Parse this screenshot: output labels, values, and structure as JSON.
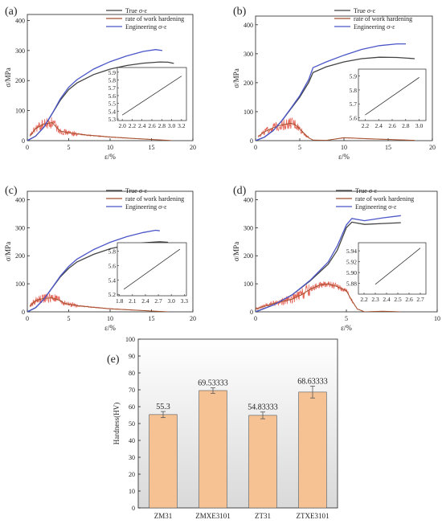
{
  "chart_data": [
    {
      "type": "line",
      "panel_label": "(a)",
      "xlabel": "ε/%",
      "ylabel": "σ/MPa",
      "xlim": [
        0,
        20
      ],
      "ylim": [
        0,
        420
      ],
      "xticks": [
        "0",
        "5",
        "10",
        "15",
        "20"
      ],
      "yticks": [
        "0",
        "100",
        "200",
        "300",
        "400"
      ],
      "legend": "top-right",
      "series": [
        {
          "name": "True σ-ε",
          "color": "#444444",
          "kind": "curve",
          "points": [
            [
              0,
              0
            ],
            [
              1,
              15
            ],
            [
              2,
              45
            ],
            [
              3,
              90
            ],
            [
              4,
              135
            ],
            [
              5,
              170
            ],
            [
              6,
              192
            ],
            [
              8,
              220
            ],
            [
              10,
              238
            ],
            [
              12,
              250
            ],
            [
              14,
              258
            ],
            [
              16,
              262
            ],
            [
              17,
              261
            ],
            [
              17.7,
              257
            ]
          ]
        },
        {
          "name": "rate of work hardening",
          "color": "#a0522d",
          "kind": "hardening",
          "points": [
            [
              0.3,
              15
            ],
            [
              1,
              40
            ],
            [
              2,
              55
            ],
            [
              3,
              60
            ],
            [
              3.5,
              45
            ],
            [
              4,
              32
            ],
            [
              5,
              26
            ],
            [
              7,
              19
            ],
            [
              10,
              12
            ],
            [
              13,
              7
            ],
            [
              15,
              4
            ],
            [
              17,
              1
            ],
            [
              17.5,
              0
            ]
          ]
        },
        {
          "name": "Engineering σ-ε",
          "color": "#4a56c8",
          "kind": "curve",
          "points": [
            [
              0,
              0
            ],
            [
              1,
              15
            ],
            [
              2,
              45
            ],
            [
              3,
              90
            ],
            [
              4,
              140
            ],
            [
              5,
              178
            ],
            [
              6,
              203
            ],
            [
              8,
              238
            ],
            [
              10,
              263
            ],
            [
              12,
              282
            ],
            [
              14,
              297
            ],
            [
              15.5,
              303
            ],
            [
              16.3,
              300
            ]
          ]
        }
      ],
      "inset": {
        "xlim": [
          1.9,
          3.3
        ],
        "ylim": [
          5.28,
          5.96
        ],
        "xticks": [
          "2.0",
          "2.2",
          "2.4",
          "2.6",
          "2.8",
          "3.0",
          "3.2"
        ],
        "yticks": [
          "5.3",
          "5.4",
          "5.5",
          "5.6",
          "5.7",
          "5.8",
          "5.9"
        ],
        "points": [
          [
            2.0,
            5.35
          ],
          [
            3.2,
            5.85
          ]
        ]
      }
    },
    {
      "type": "line",
      "panel_label": "(b)",
      "xlabel": "ε/%",
      "ylabel": "σ/MPa",
      "xlim": [
        0,
        20
      ],
      "ylim": [
        0,
        430
      ],
      "xticks": [
        "0",
        "5",
        "10",
        "15",
        "20"
      ],
      "yticks": [
        "0",
        "100",
        "200",
        "300",
        "400"
      ],
      "legend": "top-right",
      "series": [
        {
          "name": "True σ-ε",
          "color": "#444444",
          "kind": "curve",
          "points": [
            [
              0,
              0
            ],
            [
              1,
              12
            ],
            [
              2,
              35
            ],
            [
              3,
              70
            ],
            [
              4,
              110
            ],
            [
              5,
              150
            ],
            [
              6,
              200
            ],
            [
              6.5,
              235
            ],
            [
              8,
              255
            ],
            [
              10,
              272
            ],
            [
              12,
              283
            ],
            [
              14,
              288
            ],
            [
              16,
              287
            ],
            [
              18,
              283
            ]
          ]
        },
        {
          "name": "rate of work hardening",
          "color": "#a0522d",
          "kind": "hardening",
          "points": [
            [
              0.3,
              15
            ],
            [
              1,
              30
            ],
            [
              2,
              45
            ],
            [
              3,
              55
            ],
            [
              4,
              60
            ],
            [
              4.5,
              55
            ],
            [
              5,
              40
            ],
            [
              5.5,
              25
            ],
            [
              6,
              10
            ],
            [
              6.5,
              2
            ],
            [
              8,
              1
            ],
            [
              10,
              10
            ],
            [
              13,
              6
            ],
            [
              16,
              3
            ],
            [
              18,
              1
            ]
          ]
        },
        {
          "name": "Engineering σ-ε",
          "color": "#4a56c8",
          "kind": "curve",
          "points": [
            [
              0,
              0
            ],
            [
              1,
              12
            ],
            [
              2,
              35
            ],
            [
              3,
              70
            ],
            [
              4,
              112
            ],
            [
              5,
              155
            ],
            [
              6,
              210
            ],
            [
              6.5,
              252
            ],
            [
              8,
              272
            ],
            [
              10,
              295
            ],
            [
              12,
              315
            ],
            [
              14,
              328
            ],
            [
              16,
              334
            ],
            [
              17,
              334
            ]
          ]
        }
      ],
      "inset": {
        "xlim": [
          2.1,
          3.1
        ],
        "ylim": [
          5.58,
          5.95
        ],
        "xticks": [
          "2.2",
          "2.4",
          "2.6",
          "2.8",
          "3.0"
        ],
        "yticks": [
          "5.6",
          "5.7",
          "5.8",
          "5.9"
        ],
        "points": [
          [
            2.2,
            5.62
          ],
          [
            3.0,
            5.89
          ]
        ]
      }
    },
    {
      "type": "line",
      "panel_label": "(c)",
      "xlabel": "ε/%",
      "ylabel": "σ/MPa",
      "xlim": [
        0,
        20
      ],
      "ylim": [
        0,
        430
      ],
      "xticks": [
        "0",
        "5",
        "10",
        "15",
        "20"
      ],
      "yticks": [
        "0",
        "100",
        "200",
        "300",
        "400"
      ],
      "legend": "top-right",
      "series": [
        {
          "name": "True σ-ε",
          "color": "#444444",
          "kind": "curve",
          "points": [
            [
              0,
              0
            ],
            [
              1,
              15
            ],
            [
              2,
              45
            ],
            [
              3,
              85
            ],
            [
              4,
              125
            ],
            [
              5,
              155
            ],
            [
              6,
              178
            ],
            [
              8,
              205
            ],
            [
              10,
              225
            ],
            [
              12,
              238
            ],
            [
              14,
              246
            ],
            [
              16,
              250
            ],
            [
              17,
              248
            ]
          ]
        },
        {
          "name": "rate of work hardening",
          "color": "#a0522d",
          "kind": "hardening",
          "points": [
            [
              0.3,
              20
            ],
            [
              1,
              40
            ],
            [
              2,
              48
            ],
            [
              3,
              50
            ],
            [
              4,
              40
            ],
            [
              4.5,
              30
            ],
            [
              6,
              22
            ],
            [
              8,
              16
            ],
            [
              10,
              11
            ],
            [
              13,
              6
            ],
            [
              15,
              3
            ],
            [
              17,
              0
            ]
          ]
        },
        {
          "name": "Engineering σ-ε",
          "color": "#4a56c8",
          "kind": "curve",
          "points": [
            [
              0,
              0
            ],
            [
              1,
              15
            ],
            [
              2,
              45
            ],
            [
              3,
              86
            ],
            [
              4,
              128
            ],
            [
              5,
              162
            ],
            [
              6,
              188
            ],
            [
              8,
              222
            ],
            [
              10,
              248
            ],
            [
              12,
              268
            ],
            [
              14,
              283
            ],
            [
              15.5,
              291
            ],
            [
              16,
              289
            ]
          ]
        }
      ],
      "inset": {
        "xlim": [
          1.75,
          3.35
        ],
        "ylim": [
          5.18,
          5.92
        ],
        "xticks": [
          "1.8",
          "2.1",
          "2.4",
          "2.7",
          "3.0",
          "3.3"
        ],
        "yticks": [
          "5.2",
          "5.4",
          "5.6",
          "5.8"
        ],
        "points": [
          [
            1.9,
            5.27
          ],
          [
            3.2,
            5.83
          ]
        ]
      }
    },
    {
      "type": "line",
      "panel_label": "(d)",
      "xlabel": "ε/%",
      "ylabel": "σ/MPa",
      "xlim": [
        0,
        10
      ],
      "ylim": [
        0,
        430
      ],
      "xticks": [
        "0",
        "5",
        "10"
      ],
      "yticks": [
        "0",
        "100",
        "200",
        "300",
        "400"
      ],
      "legend": "top-right",
      "series": [
        {
          "name": "True σ-ε",
          "color": "#444444",
          "kind": "curve",
          "points": [
            [
              0,
              0
            ],
            [
              1,
              25
            ],
            [
              2,
              60
            ],
            [
              3,
              110
            ],
            [
              4,
              170
            ],
            [
              4.5,
              220
            ],
            [
              5,
              300
            ],
            [
              5.3,
              320
            ],
            [
              6,
              312
            ],
            [
              7,
              315
            ],
            [
              8,
              318
            ]
          ]
        },
        {
          "name": "rate of work hardening",
          "color": "#a0522d",
          "kind": "hardening",
          "points": [
            [
              0,
              10
            ],
            [
              1,
              30
            ],
            [
              2,
              45
            ],
            [
              2.5,
              60
            ],
            [
              3,
              80
            ],
            [
              3.5,
              95
            ],
            [
              4,
              100
            ],
            [
              4.5,
              90
            ],
            [
              5,
              75
            ],
            [
              5.3,
              40
            ],
            [
              5.6,
              10
            ],
            [
              6,
              0
            ],
            [
              7,
              2
            ],
            [
              8,
              0
            ]
          ]
        },
        {
          "name": "Engineering σ-ε",
          "color": "#4a56c8",
          "kind": "curve",
          "points": [
            [
              0,
              0
            ],
            [
              1,
              25
            ],
            [
              2,
              60
            ],
            [
              3,
              112
            ],
            [
              4,
              178
            ],
            [
              4.5,
              235
            ],
            [
              5,
              310
            ],
            [
              5.3,
              333
            ],
            [
              6,
              325
            ],
            [
              7,
              335
            ],
            [
              8,
              343
            ]
          ]
        }
      ],
      "inset": {
        "xlim": [
          2.15,
          2.75
        ],
        "ylim": [
          5.86,
          5.955
        ],
        "xticks": [
          "2.2",
          "2.3",
          "2.4",
          "2.5",
          "2.6",
          "2.7"
        ],
        "yticks": [
          "5.88",
          "5.90",
          "5.92",
          "5.94"
        ],
        "points": [
          [
            2.3,
            5.878
          ],
          [
            2.7,
            5.945
          ]
        ]
      }
    },
    {
      "type": "bar",
      "panel_label": "(e)",
      "ylabel": "Hardness(HV)",
      "ylim": [
        0,
        100
      ],
      "yticks": [
        "0",
        "10",
        "20",
        "30",
        "40",
        "50",
        "60",
        "70",
        "80",
        "90",
        "100"
      ],
      "categories": [
        "ZM31",
        "ZMXE3101",
        "ZT31",
        "ZTXE3101"
      ],
      "values": [
        55.3,
        69.53333,
        54.83333,
        68.63333
      ],
      "value_labels": [
        "55.3",
        "69.53333",
        "54.83333",
        "68.63333"
      ],
      "errors": [
        1.8,
        1.6,
        2.0,
        3.5
      ],
      "bar_color": "#f7c293",
      "background": "gradient"
    }
  ]
}
